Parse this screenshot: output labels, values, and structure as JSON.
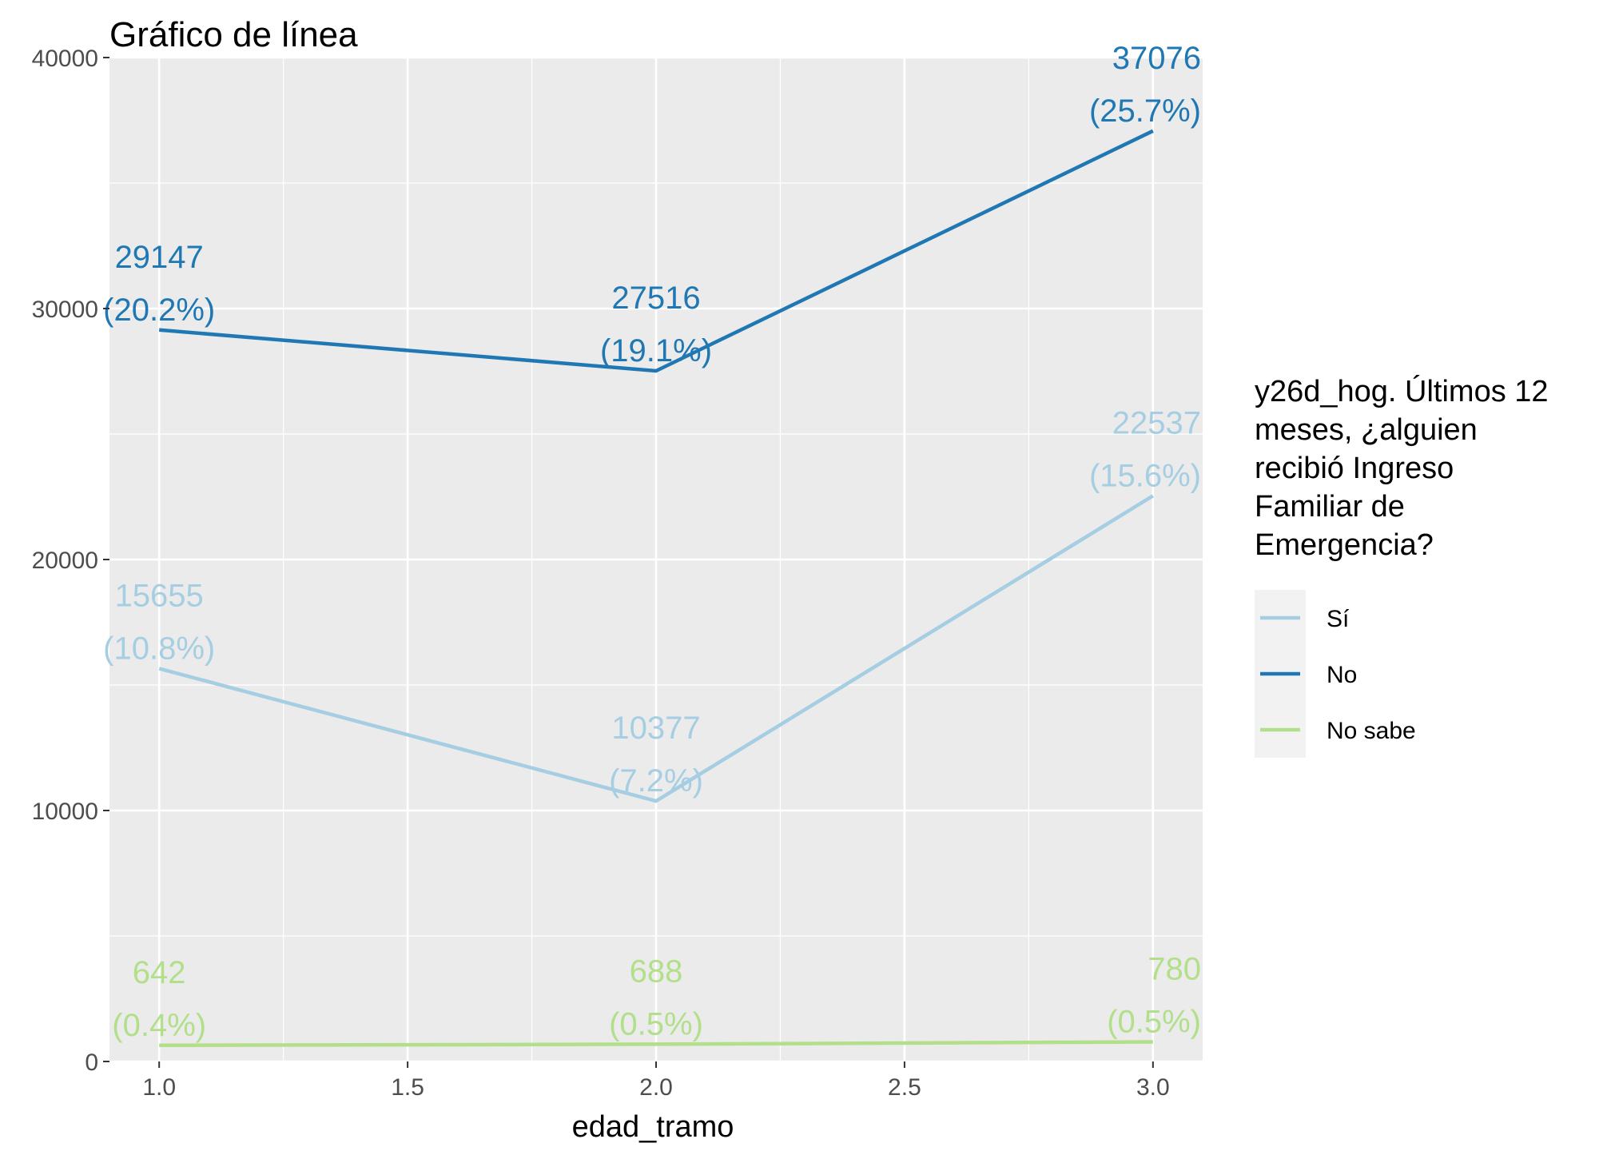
{
  "chart_data": {
    "type": "line",
    "title": "Gráfico de línea",
    "xlabel": "edad_tramo",
    "ylabel": "",
    "xlim": [
      0.9,
      3.1
    ],
    "ylim": [
      0,
      40000
    ],
    "x_ticks": [
      "1.0",
      "1.5",
      "2.0",
      "2.5",
      "3.0"
    ],
    "x_tick_values": [
      1.0,
      1.5,
      2.0,
      2.5,
      3.0
    ],
    "y_ticks": [
      "0",
      "10000",
      "20000",
      "30000",
      "40000"
    ],
    "y_tick_values": [
      0,
      10000,
      20000,
      30000,
      40000
    ],
    "grid": true,
    "legend_position": "right",
    "legend_title": "y26d_hog. Últimos 12 meses, ¿alguien recibió Ingreso Familiar de Emergencia?",
    "legend_title_lines": [
      "y26d_hog. Últimos 12",
      "meses, ¿alguien",
      "recibió Ingreso",
      "Familiar de",
      "Emergencia?"
    ],
    "x": [
      1.0,
      2.0,
      3.0
    ],
    "series": [
      {
        "name": "Sí",
        "color": "#a6cee3",
        "values": [
          15655,
          10377,
          22537
        ],
        "labels": [
          "15655",
          "10377",
          "22537"
        ],
        "pct": [
          "(10.8%)",
          "(7.2%)",
          "(15.6%)"
        ]
      },
      {
        "name": "No",
        "color": "#1f78b4",
        "values": [
          29147,
          27516,
          37076
        ],
        "labels": [
          "29147",
          "27516",
          "37076"
        ],
        "pct": [
          "(20.2%)",
          "(19.1%)",
          "(25.7%)"
        ]
      },
      {
        "name": "No sabe",
        "color": "#b2df8a",
        "values": [
          642,
          688,
          780
        ],
        "labels": [
          "642",
          "688",
          "780"
        ],
        "pct": [
          "(0.4%)",
          "(0.5%)",
          "(0.5%)"
        ]
      }
    ]
  }
}
